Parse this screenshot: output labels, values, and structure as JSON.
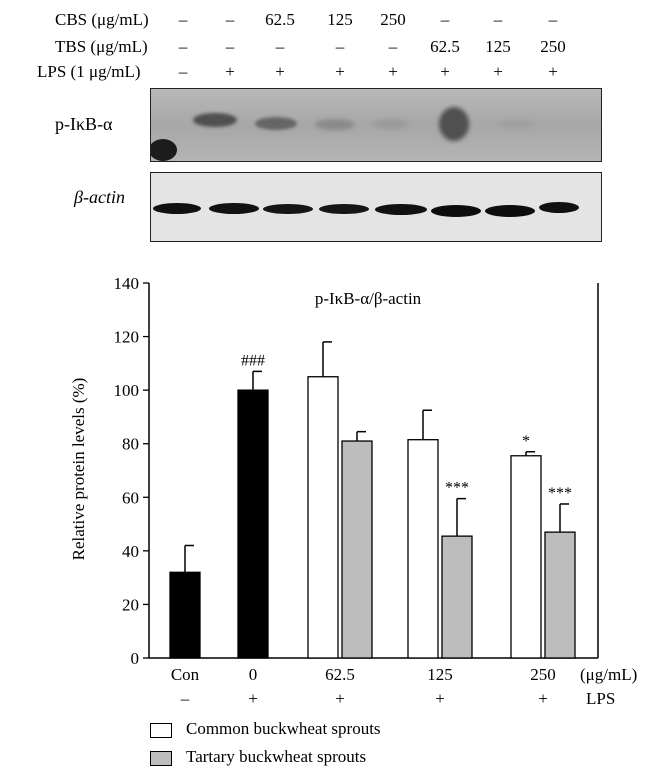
{
  "blot": {
    "rows": [
      {
        "label": "CBS (μg/mL)",
        "values": [
          "–",
          "–",
          "62.5",
          "125",
          "250",
          "–",
          "–",
          "–"
        ]
      },
      {
        "label": "TBS (μg/mL)",
        "values": [
          "–",
          "–",
          "–",
          "–",
          "–",
          "62.5",
          "125",
          "250"
        ]
      },
      {
        "label": "LPS (1 μg/mL)",
        "values": [
          "–",
          "+",
          "+",
          "+",
          "+",
          "+",
          "+",
          "+"
        ]
      }
    ],
    "panel_labels": {
      "ikb": "p-IκB-α",
      "actin": "β-actin"
    }
  },
  "chart_data": {
    "type": "bar",
    "title": "p-IκB-α/β-actin",
    "ylabel": "Relative protein levels (%)",
    "xlabel": "",
    "ylim": [
      0,
      140
    ],
    "yticks": [
      0,
      20,
      40,
      60,
      80,
      100,
      120,
      140
    ],
    "bars": [
      {
        "group": "Con",
        "series": "control",
        "value": 32,
        "error": 10,
        "annotation": ""
      },
      {
        "group": "0",
        "series": "control",
        "value": 100,
        "error": 7,
        "annotation": "###"
      },
      {
        "group": "62.5",
        "series": "Common buckwheat sprouts",
        "value": 105,
        "error": 13,
        "annotation": ""
      },
      {
        "group": "62.5",
        "series": "Tartary buckwheat sprouts",
        "value": 81,
        "error": 3.5,
        "annotation": ""
      },
      {
        "group": "125",
        "series": "Common buckwheat sprouts",
        "value": 81.5,
        "error": 11,
        "annotation": ""
      },
      {
        "group": "125",
        "series": "Tartary buckwheat sprouts",
        "value": 45.5,
        "error": 14,
        "annotation": "***"
      },
      {
        "group": "250",
        "series": "Common buckwheat sprouts",
        "value": 75.5,
        "error": 1.5,
        "annotation": "*"
      },
      {
        "group": "250",
        "series": "Tartary buckwheat sprouts",
        "value": 47,
        "error": 10.5,
        "annotation": "***"
      }
    ],
    "x_labels": [
      "Con",
      "0",
      "62.5",
      "125",
      "250"
    ],
    "x_unit": "(μg/mL)",
    "lps_row": [
      "–",
      "+",
      "+",
      "+",
      "+"
    ],
    "lps_label": "LPS",
    "legend": [
      {
        "label": "Common buckwheat sprouts",
        "color": "#ffffff"
      },
      {
        "label": "Tartary buckwheat sprouts",
        "color": "#bdbdbd"
      }
    ],
    "colors": {
      "control": "#000000",
      "Common buckwheat sprouts": "#ffffff",
      "Tartary buckwheat sprouts": "#bdbdbd"
    }
  }
}
